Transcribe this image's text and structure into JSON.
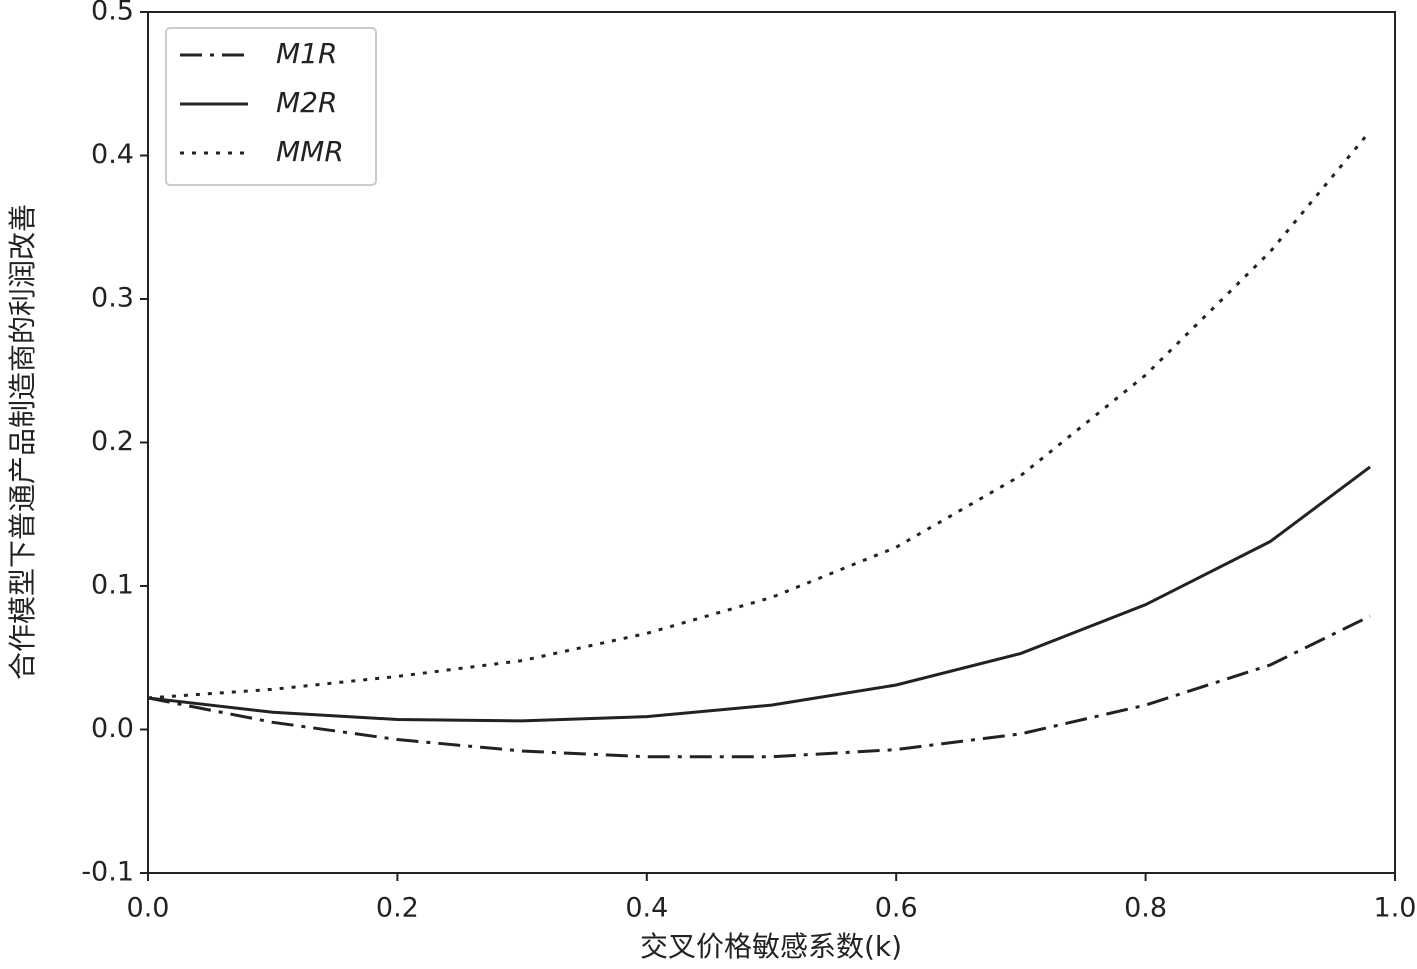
{
  "chart_data": {
    "type": "line",
    "x_label": "交叉价格敏感系数(k)",
    "y_label": "合作模型下普通产品制造商的利润改善",
    "x": [
      0,
      0.1,
      0.2,
      0.3,
      0.4,
      0.5,
      0.6,
      0.7,
      0.8,
      0.9,
      0.98
    ],
    "series": [
      {
        "name": "M1R",
        "color": "#222222",
        "style": "dashdot",
        "values": [
          0.022,
          0.005,
          -0.007,
          -0.015,
          -0.019,
          -0.019,
          -0.014,
          -0.003,
          0.017,
          0.045,
          0.079
        ]
      },
      {
        "name": "M2R",
        "color": "#222222",
        "style": "solid",
        "values": [
          0.022,
          0.012,
          0.007,
          0.006,
          0.009,
          0.017,
          0.031,
          0.053,
          0.087,
          0.131,
          0.183
        ]
      },
      {
        "name": "MMR",
        "color": "#222222",
        "style": "dotted",
        "values": [
          0.022,
          0.028,
          0.037,
          0.048,
          0.067,
          0.092,
          0.127,
          0.177,
          0.247,
          0.333,
          0.417
        ]
      }
    ],
    "xlim": [
      0,
      1
    ],
    "ylim": [
      -0.1,
      0.5
    ],
    "xticks": [
      {
        "value": 0,
        "label": "0.0"
      },
      0.2,
      0.4,
      0.6,
      0.8,
      {
        "value": 1,
        "label": "1.0"
      }
    ],
    "yticks": [
      -0.1,
      {
        "value": 0,
        "label": "0.0"
      },
      0.1,
      0.2,
      0.3,
      0.4,
      0.5
    ],
    "legend": "upper left"
  }
}
